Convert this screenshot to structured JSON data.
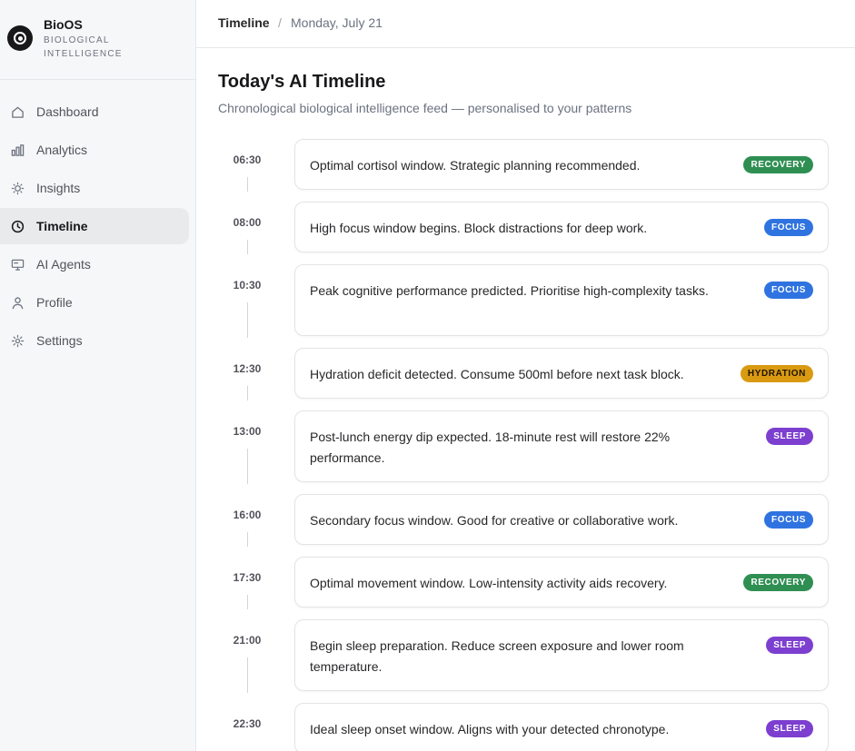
{
  "brand": {
    "name": "BioOS",
    "subtitle": "Biological Intelligence"
  },
  "nav": [
    {
      "label": "Dashboard",
      "icon": "home-icon",
      "active": false
    },
    {
      "label": "Analytics",
      "icon": "bar-chart-icon",
      "active": false
    },
    {
      "label": "Insights",
      "icon": "lightbulb-icon",
      "active": false
    },
    {
      "label": "Timeline",
      "icon": "clock-icon",
      "active": true
    },
    {
      "label": "AI Agents",
      "icon": "monitor-icon",
      "active": false
    },
    {
      "label": "Profile",
      "icon": "user-icon",
      "active": false
    },
    {
      "label": "Settings",
      "icon": "gear-icon",
      "active": false
    }
  ],
  "breadcrumb": {
    "section": "Timeline",
    "separator": "/",
    "date": "Monday, July 21"
  },
  "page": {
    "title": "Today's AI Timeline",
    "subtitle": "Chronological biological intelligence feed — personalised to your patterns"
  },
  "colors": {
    "recovery": "#2f8f53",
    "focus": "#2f73e0",
    "hydration": "#d99a12",
    "sleep": "#7c3fcf"
  },
  "timeline": [
    {
      "time": "06:30",
      "text": "Optimal cortisol window. Strategic planning recommended.",
      "tag": "RECOVERY",
      "kind": "recovery"
    },
    {
      "time": "08:00",
      "text": "High focus window begins. Block distractions for deep work.",
      "tag": "FOCUS",
      "kind": "focus"
    },
    {
      "time": "10:30",
      "text": "Peak cognitive performance predicted. Prioritise high-complexity tasks.",
      "tag": "FOCUS",
      "kind": "focus"
    },
    {
      "time": "12:30",
      "text": "Hydration deficit detected. Consume 500ml before next task block.",
      "tag": "HYDRATION",
      "kind": "hydration"
    },
    {
      "time": "13:00",
      "text": "Post-lunch energy dip expected. 18-minute rest will restore 22% performance.",
      "tag": "SLEEP",
      "kind": "sleep"
    },
    {
      "time": "16:00",
      "text": "Secondary focus window. Good for creative or collaborative work.",
      "tag": "FOCUS",
      "kind": "focus"
    },
    {
      "time": "17:30",
      "text": "Optimal movement window. Low-intensity activity aids recovery.",
      "tag": "RECOVERY",
      "kind": "recovery"
    },
    {
      "time": "21:00",
      "text": "Begin sleep preparation. Reduce screen exposure and lower room temperature.",
      "tag": "SLEEP",
      "kind": "sleep"
    },
    {
      "time": "22:30",
      "text": "Ideal sleep onset window. Aligns with your detected chronotype.",
      "tag": "SLEEP",
      "kind": "sleep"
    }
  ]
}
